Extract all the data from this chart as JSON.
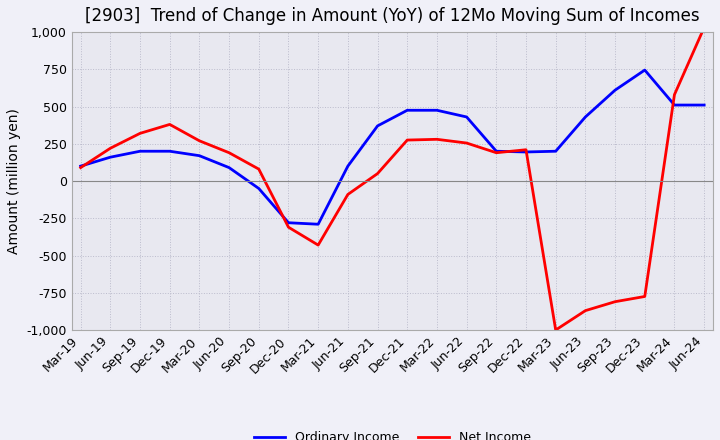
{
  "title": "[2903]  Trend of Change in Amount (YoY) of 12Mo Moving Sum of Incomes",
  "ylabel": "Amount (million yen)",
  "ylim": [
    -1000,
    1000
  ],
  "yticks": [
    -1000,
    -750,
    -500,
    -250,
    0,
    250,
    500,
    750,
    1000
  ],
  "x_labels": [
    "Mar-19",
    "Jun-19",
    "Sep-19",
    "Dec-19",
    "Mar-20",
    "Jun-20",
    "Sep-20",
    "Dec-20",
    "Mar-21",
    "Jun-21",
    "Sep-21",
    "Dec-21",
    "Mar-22",
    "Jun-22",
    "Sep-22",
    "Dec-22",
    "Mar-23",
    "Jun-23",
    "Sep-23",
    "Dec-23",
    "Mar-24",
    "Jun-24"
  ],
  "ordinary_income": [
    100,
    160,
    200,
    200,
    170,
    90,
    -50,
    -280,
    -290,
    100,
    370,
    475,
    475,
    430,
    200,
    195,
    200,
    430,
    610,
    745,
    510,
    510
  ],
  "net_income": [
    90,
    220,
    320,
    380,
    270,
    190,
    80,
    -310,
    -430,
    -90,
    50,
    275,
    280,
    255,
    190,
    210,
    -1000,
    -870,
    -810,
    -775,
    580,
    1030
  ],
  "ordinary_color": "#0000ff",
  "net_color": "#ff0000",
  "grid_color": "#bbbbcc",
  "background_color": "#f0f0f8",
  "plot_bg_color": "#e8e8f0",
  "title_fontsize": 12,
  "axis_fontsize": 10,
  "tick_fontsize": 9,
  "legend_labels": [
    "Ordinary Income",
    "Net Income"
  ]
}
